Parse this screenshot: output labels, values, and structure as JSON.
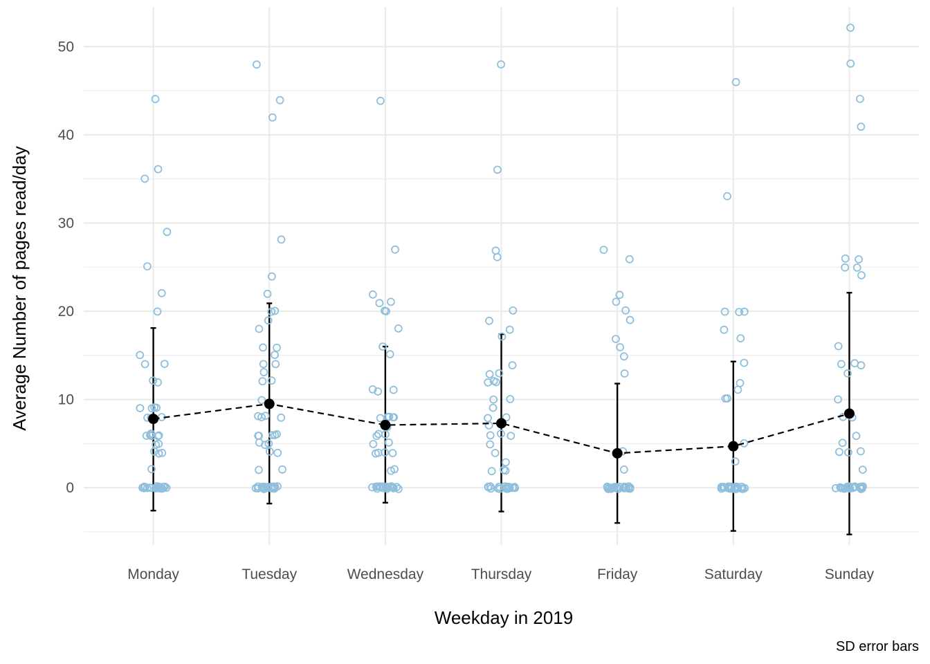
{
  "chart_data": {
    "type": "scatter",
    "xlabel": "Weekday in 2019",
    "ylabel": "Average Number of pages read/day",
    "caption": "SD error bars",
    "categories": [
      "Monday",
      "Tuesday",
      "Wednesday",
      "Thursday",
      "Friday",
      "Saturday",
      "Sunday"
    ],
    "ylim": [
      -6.5,
      54.5
    ],
    "y_ticks": [
      0,
      10,
      20,
      30,
      40,
      50
    ],
    "grid": true,
    "colors": {
      "points": "#8fbfdc",
      "summary": "#000000",
      "grid": "#ebebeb"
    },
    "summary": {
      "mean": [
        7.8,
        9.5,
        7.1,
        7.3,
        3.9,
        4.7,
        8.4
      ],
      "sd_lower": [
        -2.6,
        -1.8,
        -1.7,
        -2.7,
        -4.0,
        -4.9,
        -5.3
      ],
      "sd_upper": [
        18.1,
        20.9,
        16.0,
        17.4,
        11.8,
        14.3,
        22.1
      ]
    },
    "observations": [
      [
        0,
        0,
        0,
        0,
        0,
        0,
        0,
        0,
        0,
        0,
        0,
        0,
        0,
        0,
        0,
        0,
        0,
        0,
        0,
        0,
        2,
        4,
        4,
        4,
        5,
        5,
        6,
        6,
        6,
        6,
        6,
        6,
        8,
        8,
        8,
        9,
        9,
        9,
        9,
        12,
        12,
        14,
        14,
        15,
        20,
        22,
        25,
        29,
        35,
        36,
        44
      ],
      [
        0,
        0,
        0,
        0,
        0,
        0,
        0,
        0,
        0,
        0,
        0,
        0,
        0,
        0,
        0,
        0,
        0,
        0,
        0,
        0,
        0,
        2,
        2,
        4,
        4,
        5,
        5,
        5,
        6,
        6,
        6,
        6,
        6,
        8,
        8,
        8,
        8,
        10,
        12,
        12,
        13,
        14,
        14,
        15,
        16,
        16,
        18,
        19,
        20,
        20,
        22,
        24,
        28,
        42,
        44,
        48
      ],
      [
        0,
        0,
        0,
        0,
        0,
        0,
        0,
        0,
        0,
        0,
        0,
        0,
        0,
        0,
        0,
        0,
        0,
        0,
        0,
        0,
        0,
        2,
        2,
        4,
        4,
        4,
        4,
        5,
        5,
        6,
        6,
        6,
        7,
        8,
        8,
        8,
        8,
        8,
        11,
        11,
        11,
        15,
        16,
        18,
        20,
        20,
        21,
        21,
        22,
        27,
        44
      ],
      [
        0,
        0,
        0,
        0,
        0,
        0,
        0,
        0,
        0,
        0,
        0,
        0,
        0,
        0,
        0,
        0,
        0,
        0,
        0,
        0,
        2,
        2,
        2,
        3,
        4,
        5,
        6,
        6,
        6,
        7,
        8,
        8,
        9,
        10,
        10,
        12,
        12,
        12,
        13,
        13,
        14,
        17,
        18,
        19,
        20,
        26,
        27,
        36,
        48
      ],
      [
        0,
        0,
        0,
        0,
        0,
        0,
        0,
        0,
        0,
        0,
        0,
        0,
        0,
        0,
        0,
        0,
        0,
        0,
        0,
        0,
        0,
        0,
        0,
        0,
        0,
        0,
        2,
        4,
        13,
        15,
        16,
        17,
        19,
        20,
        21,
        22,
        26,
        27
      ],
      [
        0,
        0,
        0,
        0,
        0,
        0,
        0,
        0,
        0,
        0,
        0,
        0,
        0,
        0,
        0,
        0,
        0,
        0,
        0,
        0,
        0,
        0,
        0,
        0,
        0,
        0,
        3,
        5,
        10,
        10,
        11,
        12,
        14,
        17,
        18,
        20,
        20,
        20,
        33,
        46
      ],
      [
        0,
        0,
        0,
        0,
        0,
        0,
        0,
        0,
        0,
        0,
        0,
        0,
        0,
        0,
        0,
        0,
        0,
        0,
        0,
        0,
        0,
        0,
        0,
        0,
        0,
        2,
        4,
        4,
        4,
        5,
        6,
        8,
        8,
        10,
        13,
        14,
        14,
        14,
        16,
        24,
        25,
        25,
        26,
        26,
        41,
        44,
        48,
        52
      ]
    ]
  }
}
